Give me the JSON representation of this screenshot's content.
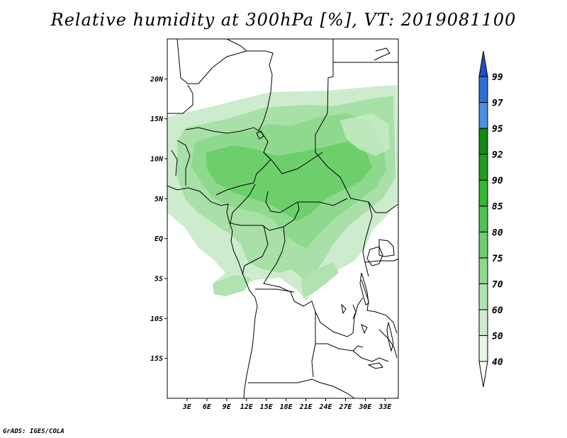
{
  "title": "Relative humidity at 300hPa [%], VT: 2019081100",
  "credit": "GrADS: IGES/COLA",
  "map": {
    "region": "Central Africa",
    "lon_range": [
      0,
      35
    ],
    "lat_range": [
      -20,
      25
    ],
    "lat_ticks": [
      {
        "value": 20,
        "label": "20N"
      },
      {
        "value": 15,
        "label": "15N"
      },
      {
        "value": 10,
        "label": "10N"
      },
      {
        "value": 5,
        "label": "5N"
      },
      {
        "value": 0,
        "label": "EQ"
      },
      {
        "value": -5,
        "label": "5S"
      },
      {
        "value": -10,
        "label": "10S"
      },
      {
        "value": -15,
        "label": "15S"
      }
    ],
    "lon_ticks": [
      {
        "value": 3,
        "label": "3E"
      },
      {
        "value": 6,
        "label": "6E"
      },
      {
        "value": 9,
        "label": "9E"
      },
      {
        "value": 12,
        "label": "12E"
      },
      {
        "value": 15,
        "label": "15E"
      },
      {
        "value": 18,
        "label": "18E"
      },
      {
        "value": 21,
        "label": "21E"
      },
      {
        "value": 24,
        "label": "24E"
      },
      {
        "value": 27,
        "label": "27E"
      },
      {
        "value": 30,
        "label": "30E"
      },
      {
        "value": 33,
        "label": "33E"
      }
    ]
  },
  "legend": {
    "levels": [
      "40",
      "50",
      "60",
      "70",
      "75",
      "80",
      "85",
      "90",
      "92",
      "95",
      "97",
      "99"
    ],
    "colors": [
      "#ffffff",
      "#e6f5e6",
      "#cdeccd",
      "#b0e3b0",
      "#8fd98f",
      "#6ccf6c",
      "#4fc34f",
      "#35b535",
      "#1f9e1f",
      "#138a13",
      "#4a90e2",
      "#2f6fd6",
      "#1f4fc0"
    ]
  }
}
